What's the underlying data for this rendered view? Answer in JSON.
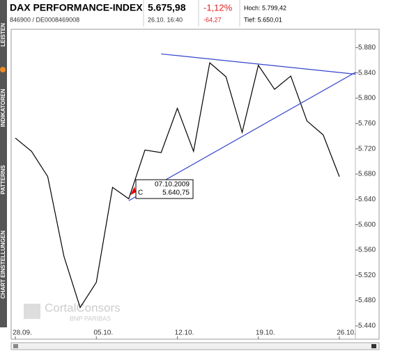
{
  "header": {
    "title": "DAX PERFORMANCE-INDEX",
    "id": "846900 / DE0008469008",
    "price": "5.675,98",
    "time": "26.10. 16:40",
    "change_pct": "-1,12%",
    "change": "-64,27",
    "high": "Hoch: 5.799,42",
    "low": "Tief: 5.650,01"
  },
  "sidebar": {
    "tabs": [
      "LEISTEN",
      "INDIKATOREN",
      "PATTERNS",
      "CHART EINSTELLUNGEN"
    ]
  },
  "watermark": {
    "brand": "CortalConsors",
    "sub": "BNP PARIBAS"
  },
  "tooltip": {
    "date": "07.10.2009",
    "key": "C",
    "value": "5.640,75"
  },
  "chart_data": {
    "type": "line",
    "color": "#000000",
    "grid": false,
    "categories": [
      "28.09.",
      null,
      null,
      null,
      null,
      "05.10.",
      null,
      null,
      null,
      null,
      "12.10.",
      null,
      null,
      null,
      null,
      "19.10.",
      null,
      null,
      null,
      null,
      "26.10."
    ],
    "values": [
      5737,
      5716,
      5676,
      5550,
      5469,
      5509,
      5659,
      5641,
      5718,
      5714,
      5784,
      5716,
      5856,
      5834,
      5746,
      5852,
      5814,
      5835,
      5764,
      5742,
      5676
    ],
    "ylim": [
      5419,
      5909
    ],
    "yticks": [
      {
        "value": 5440,
        "label": "5.440"
      },
      {
        "value": 5480,
        "label": "5.480"
      },
      {
        "value": 5520,
        "label": "5.520"
      },
      {
        "value": 5560,
        "label": "5.560"
      },
      {
        "value": 5600,
        "label": "5.600"
      },
      {
        "value": 5640,
        "label": "5.640"
      },
      {
        "value": 5680,
        "label": "5.680"
      },
      {
        "value": 5720,
        "label": "5.720"
      },
      {
        "value": 5760,
        "label": "5.760"
      },
      {
        "value": 5800,
        "label": "5.800"
      },
      {
        "value": 5840,
        "label": "5.840"
      },
      {
        "value": 5880,
        "label": "5.880"
      }
    ],
    "trendlines": [
      {
        "color": "#3344cc",
        "x": [
          9,
          21
        ],
        "y": [
          5870,
          5838
        ]
      },
      {
        "color": "#3344cc",
        "x": [
          7,
          21
        ],
        "y": [
          5638,
          5841
        ]
      }
    ]
  }
}
